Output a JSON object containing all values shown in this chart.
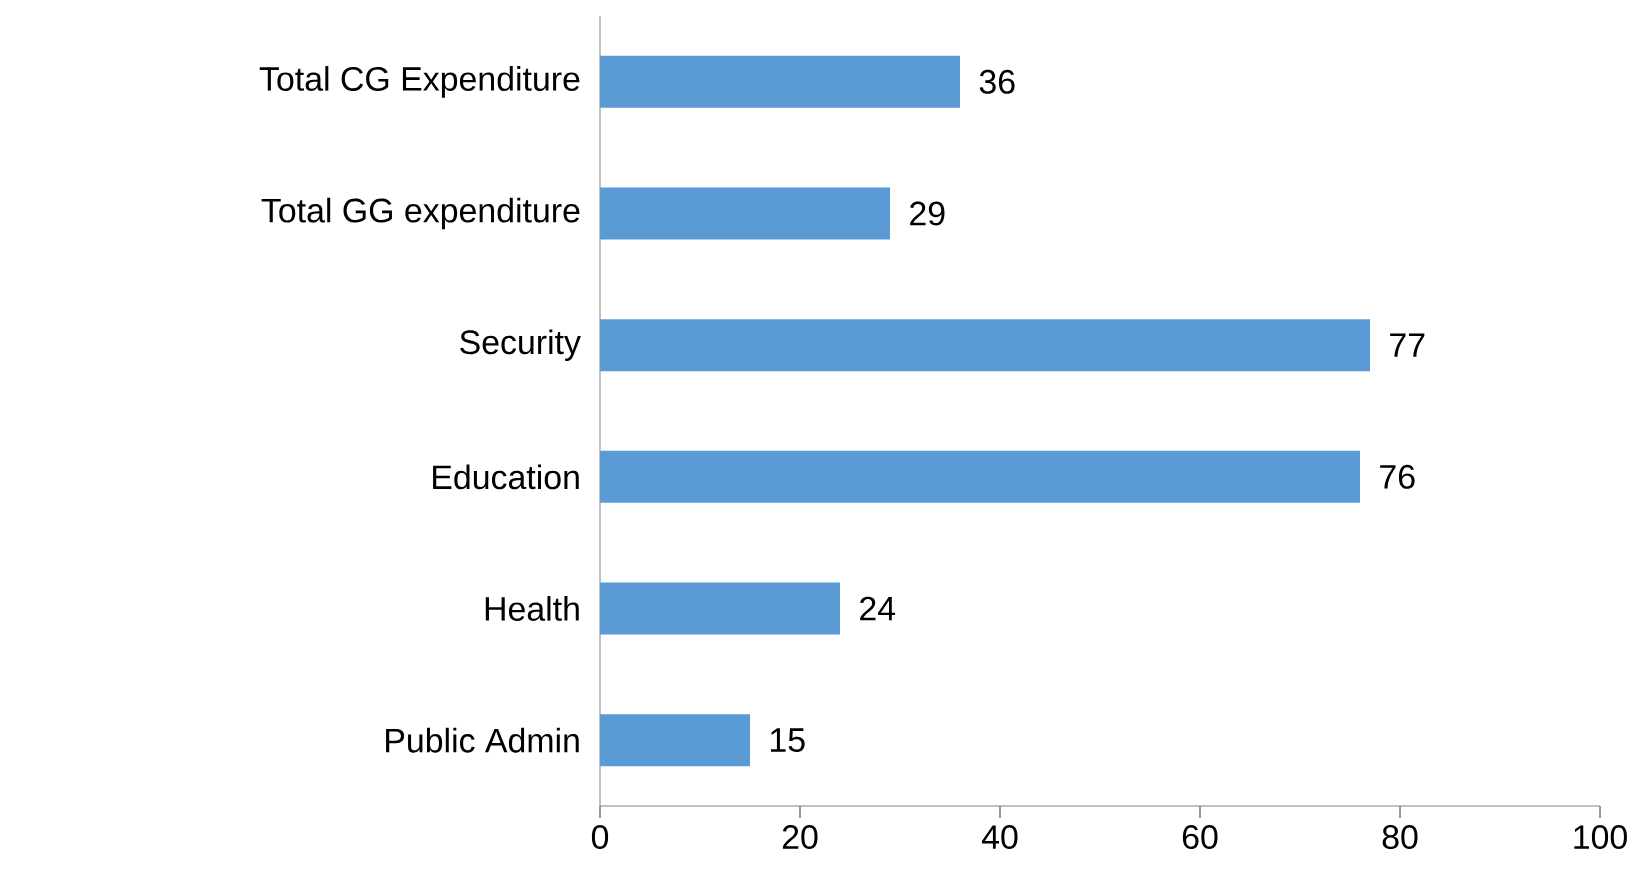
{
  "chart_data": {
    "type": "bar",
    "orientation": "horizontal",
    "categories": [
      "Total CG Expenditure",
      "Total GG expenditure",
      "Security",
      "Education",
      "Health",
      "Public Admin"
    ],
    "values": [
      36,
      29,
      77,
      76,
      24,
      15
    ],
    "color": "#5b9bd5",
    "xlim": [
      0,
      100
    ],
    "xticks": [
      0,
      20,
      40,
      60,
      80,
      100
    ],
    "data_labels": true
  }
}
